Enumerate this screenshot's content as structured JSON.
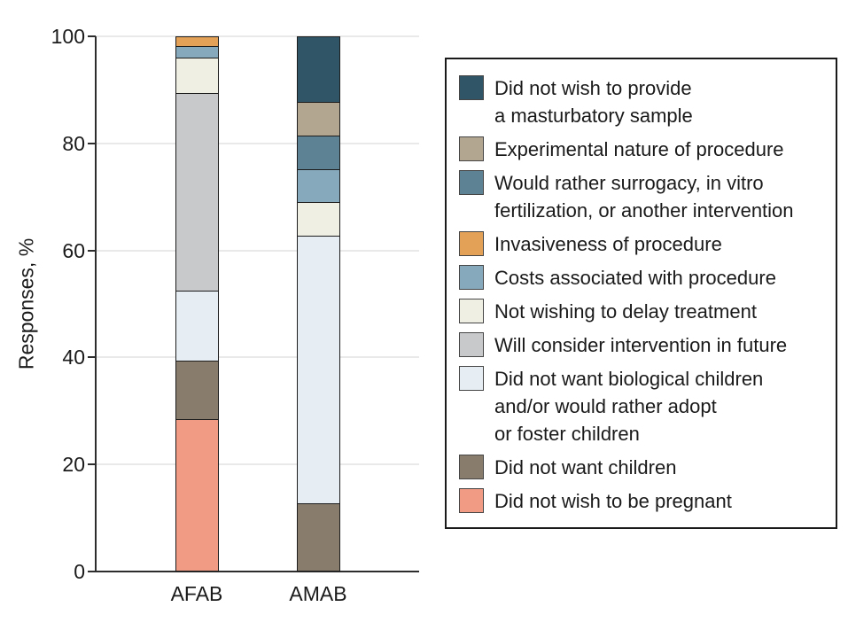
{
  "chart_data": {
    "type": "bar",
    "subtype": "stacked-vertical",
    "categories": [
      "AFAB",
      "AMAB"
    ],
    "ylabel": "Responses, %",
    "ylim": [
      0,
      100
    ],
    "yticks": [
      0,
      20,
      40,
      60,
      80,
      100
    ],
    "grid": "horizontal",
    "legend_position": "right",
    "series": [
      {
        "name": "Did not wish to provide\na masturbatory sample",
        "color": "#2F5566",
        "values": [
          0,
          12.5
        ]
      },
      {
        "name": "Experimental nature of procedure",
        "color": "#B2A690",
        "values": [
          0,
          6.25
        ]
      },
      {
        "name": "Would rather surrogacy, in vitro\nfertilization, or another intervention",
        "color": "#5D8294",
        "values": [
          0,
          6.25
        ]
      },
      {
        "name": "Invasiveness of procedure",
        "color": "#E2A156",
        "values": [
          2.1,
          0
        ]
      },
      {
        "name": "Costs associated with procedure",
        "color": "#86A9BB",
        "values": [
          2.2,
          6.25
        ]
      },
      {
        "name": "Not wishing to delay treatment",
        "color": "#F0EFE3",
        "values": [
          6.5,
          6.25
        ]
      },
      {
        "name": "Will consider intervention in future",
        "color": "#C7C9CB",
        "values": [
          37.0,
          0
        ]
      },
      {
        "name": "Did not want biological children\nand/or would rather adopt\nor foster children",
        "color": "#E6EEF3",
        "values": [
          13.0,
          50.0
        ]
      },
      {
        "name": "Did not want children",
        "color": "#887C6C",
        "values": [
          10.9,
          12.5
        ]
      },
      {
        "name": "Did not wish to be pregnant",
        "color": "#F19A84",
        "values": [
          28.3,
          0
        ]
      }
    ]
  }
}
